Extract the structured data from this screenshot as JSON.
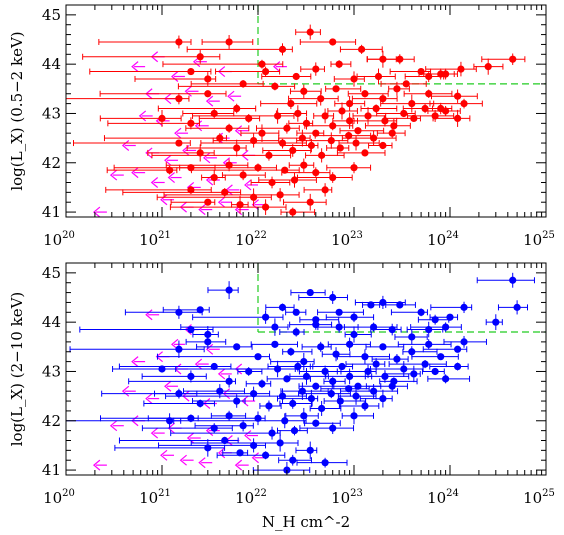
{
  "chart_data": [
    {
      "type": "scatter",
      "ylabel": "log(L_X) (0.5−2 keV)",
      "xlabel": "",
      "xscale": "log",
      "xlim": [
        1e+20,
        1e+25
      ],
      "ylim": [
        40.9,
        45.2
      ],
      "x_tick_labels": [
        {
          "base": "10",
          "exp": "20",
          "value": 1e+20
        },
        {
          "base": "10",
          "exp": "21",
          "value": 1e+21
        },
        {
          "base": "10",
          "exp": "22",
          "value": 1e+22
        },
        {
          "base": "10",
          "exp": "23",
          "value": 1e+23
        },
        {
          "base": "10",
          "exp": "24",
          "value": 1e+24
        },
        {
          "base": "10",
          "exp": "25",
          "value": 1e+25
        }
      ],
      "y_tick_labels": [
        "41",
        "42",
        "43",
        "44",
        "45"
      ],
      "colors": {
        "points": "#ff0000",
        "upper_limits": "#ff00ff",
        "threshold": "#22cc22"
      },
      "thresholds": {
        "nh": 1e+22,
        "lx": 43.6
      },
      "detections": [
        [
          1.5e+21,
          44.45
        ],
        [
          2.5e+21,
          44.15
        ],
        [
          5e+21,
          44.45
        ],
        [
          1.1e+22,
          44.0
        ],
        [
          1.8e+22,
          44.3
        ],
        [
          3.5e+22,
          44.65
        ],
        [
          6e+22,
          44.45
        ],
        [
          1.2e+23,
          44.3
        ],
        [
          2e+23,
          44.1
        ],
        [
          3e+23,
          44.1
        ],
        [
          5e+23,
          43.85
        ],
        [
          8e+23,
          43.8
        ],
        [
          1.3e+24,
          43.9
        ],
        [
          2.5e+24,
          43.95
        ],
        [
          4.5e+24,
          44.1
        ],
        [
          2e+21,
          43.85
        ],
        [
          3e+21,
          43.7
        ],
        [
          7e+21,
          43.6
        ],
        [
          1.2e+22,
          43.85
        ],
        [
          2.5e+22,
          43.75
        ],
        [
          4e+22,
          43.9
        ],
        [
          7e+22,
          44.0
        ],
        [
          1e+23,
          43.7
        ],
        [
          1.8e+23,
          43.75
        ],
        [
          3.5e+23,
          43.6
        ],
        [
          6e+23,
          43.75
        ],
        [
          9e+23,
          43.8
        ],
        [
          1.5e+21,
          43.3
        ],
        [
          3e+21,
          43.4
        ],
        [
          6e+21,
          43.1
        ],
        [
          1.5e+22,
          43.55
        ],
        [
          2.2e+22,
          43.2
        ],
        [
          3e+22,
          43.45
        ],
        [
          4.5e+22,
          43.3
        ],
        [
          6.5e+22,
          43.5
        ],
        [
          9e+22,
          43.2
        ],
        [
          1.3e+23,
          43.4
        ],
        [
          2e+23,
          43.3
        ],
        [
          2.8e+23,
          43.5
        ],
        [
          4e+23,
          43.2
        ],
        [
          6e+23,
          43.4
        ],
        [
          8e+23,
          43.1
        ],
        [
          1.2e+24,
          43.35
        ],
        [
          1e+21,
          42.9
        ],
        [
          2e+21,
          42.8
        ],
        [
          3.5e+21,
          43.0
        ],
        [
          5e+21,
          42.7
        ],
        [
          8e+21,
          42.9
        ],
        [
          1.1e+22,
          42.6
        ],
        [
          1.6e+22,
          42.95
        ],
        [
          2e+22,
          42.7
        ],
        [
          2.6e+22,
          43.0
        ],
        [
          3.2e+22,
          42.8
        ],
        [
          4e+22,
          42.6
        ],
        [
          5e+22,
          42.95
        ],
        [
          6e+22,
          42.75
        ],
        [
          7.5e+22,
          43.05
        ],
        [
          9e+22,
          42.85
        ],
        [
          1.1e+23,
          42.65
        ],
        [
          1.4e+23,
          42.95
        ],
        [
          1.7e+23,
          43.1
        ],
        [
          2.1e+23,
          42.85
        ],
        [
          2.6e+23,
          42.75
        ],
        [
          3.3e+23,
          43.0
        ],
        [
          4.2e+23,
          42.9
        ],
        [
          5.5e+23,
          43.1
        ],
        [
          7e+23,
          42.95
        ],
        [
          9e+23,
          43.05
        ],
        [
          1.2e+24,
          42.9
        ],
        [
          1.4e+24,
          43.2
        ],
        [
          1.5e+21,
          42.4
        ],
        [
          2.5e+21,
          42.2
        ],
        [
          4e+21,
          42.5
        ],
        [
          6e+21,
          42.3
        ],
        [
          9e+21,
          42.45
        ],
        [
          1.3e+22,
          42.15
        ],
        [
          1.8e+22,
          42.4
        ],
        [
          2.3e+22,
          42.25
        ],
        [
          2.9e+22,
          42.5
        ],
        [
          3.6e+22,
          42.35
        ],
        [
          4.6e+22,
          42.15
        ],
        [
          5.8e+22,
          42.45
        ],
        [
          7.2e+22,
          42.3
        ],
        [
          8.8e+22,
          42.55
        ],
        [
          1.05e+23,
          42.4
        ],
        [
          1.3e+23,
          42.2
        ],
        [
          1.6e+23,
          42.5
        ],
        [
          2e+23,
          42.35
        ],
        [
          2.5e+23,
          42.6
        ],
        [
          1.2e+21,
          41.85
        ],
        [
          2e+21,
          41.9
        ],
        [
          3.5e+21,
          41.7
        ],
        [
          5e+21,
          41.95
        ],
        [
          7e+21,
          41.75
        ],
        [
          1e+22,
          41.9
        ],
        [
          1.4e+22,
          41.6
        ],
        [
          1.9e+22,
          41.85
        ],
        [
          2.4e+22,
          41.65
        ],
        [
          3e+22,
          41.95
        ],
        [
          4e+22,
          41.8
        ],
        [
          6e+22,
          41.7
        ],
        [
          1e+23,
          41.9
        ],
        [
          2e+21,
          41.45
        ],
        [
          3e+21,
          41.2
        ],
        [
          4.5e+21,
          41.4
        ],
        [
          6.5e+21,
          41.15
        ],
        [
          9e+21,
          41.3
        ],
        [
          1.2e+22,
          41.1
        ],
        [
          1.7e+22,
          41.35
        ],
        [
          2.3e+22,
          41.0
        ],
        [
          3.5e+22,
          41.2
        ],
        [
          5e+22,
          41.45
        ]
      ],
      "upper_limits": [
        [
          5e+20,
          43.95
        ],
        [
          8e+20,
          44.15
        ],
        [
          1.3e+21,
          43.75
        ],
        [
          2.2e+21,
          44.05
        ],
        [
          4e+21,
          43.85
        ],
        [
          1.5e+22,
          43.95
        ],
        [
          7e+20,
          43.4
        ],
        [
          1.1e+21,
          43.3
        ],
        [
          1.8e+21,
          43.45
        ],
        [
          3e+21,
          43.25
        ],
        [
          5e+21,
          43.35
        ],
        [
          6e+20,
          42.95
        ],
        [
          9e+20,
          42.85
        ],
        [
          1.4e+21,
          42.6
        ],
        [
          2.3e+21,
          42.75
        ],
        [
          3.8e+21,
          42.5
        ],
        [
          6e+21,
          42.65
        ],
        [
          4e+20,
          42.35
        ],
        [
          7e+20,
          42.2
        ],
        [
          1.1e+21,
          42.05
        ],
        [
          1.7e+21,
          42.25
        ],
        [
          2.8e+21,
          42.1
        ],
        [
          4.5e+21,
          42.0
        ],
        [
          7e+21,
          42.15
        ],
        [
          3e+20,
          41.75
        ],
        [
          5e+20,
          41.8
        ],
        [
          8e+20,
          41.6
        ],
        [
          1.2e+21,
          41.7
        ],
        [
          1.9e+21,
          41.5
        ],
        [
          3e+21,
          41.65
        ],
        [
          4.8e+21,
          41.45
        ],
        [
          7.5e+21,
          41.55
        ],
        [
          2e+20,
          41.0
        ],
        [
          1e+21,
          41.25
        ],
        [
          1.6e+21,
          41.1
        ],
        [
          2.5e+21,
          41.05
        ],
        [
          4e+21,
          41.2
        ],
        [
          6e+21,
          41.05
        ],
        [
          9e+21,
          41.15
        ]
      ]
    },
    {
      "type": "scatter",
      "ylabel": "log(L_X) (2−10 keV)",
      "xlabel": "N_H cm^-2",
      "xscale": "log",
      "xlim": [
        1e+20,
        1e+25
      ],
      "ylim": [
        40.9,
        45.2
      ],
      "x_tick_labels": [
        {
          "base": "10",
          "exp": "20",
          "value": 1e+20
        },
        {
          "base": "10",
          "exp": "21",
          "value": 1e+21
        },
        {
          "base": "10",
          "exp": "22",
          "value": 1e+22
        },
        {
          "base": "10",
          "exp": "23",
          "value": 1e+23
        },
        {
          "base": "10",
          "exp": "24",
          "value": 1e+24
        },
        {
          "base": "10",
          "exp": "25",
          "value": 1e+25
        }
      ],
      "y_tick_labels": [
        "41",
        "42",
        "43",
        "44",
        "45"
      ],
      "colors": {
        "points": "#0000ff",
        "upper_limits": "#ff00ff",
        "threshold": "#22cc22"
      },
      "thresholds": {
        "nh": 1e+22,
        "lx": 43.8
      },
      "detections": [
        [
          5e+21,
          44.65
        ],
        [
          3.5e+22,
          44.6
        ],
        [
          6e+22,
          44.5
        ],
        [
          4.5e+24,
          44.85
        ],
        [
          5e+24,
          44.3
        ],
        [
          3e+24,
          44.0
        ],
        [
          1.5e+21,
          44.2
        ],
        [
          2.5e+21,
          44.25
        ],
        [
          1.2e+22,
          44.1
        ],
        [
          1.8e+22,
          44.3
        ],
        [
          2.5e+22,
          44.2
        ],
        [
          4e+22,
          44.05
        ],
        [
          7e+22,
          44.2
        ],
        [
          1e+23,
          44.1
        ],
        [
          1.5e+23,
          44.35
        ],
        [
          2e+23,
          44.4
        ],
        [
          3e+23,
          44.35
        ],
        [
          5e+23,
          44.2
        ],
        [
          7e+23,
          44.05
        ],
        [
          1e+24,
          44.1
        ],
        [
          1.4e+24,
          44.3
        ],
        [
          2e+21,
          43.85
        ],
        [
          3e+21,
          43.75
        ],
        [
          1.5e+22,
          43.9
        ],
        [
          2.5e+22,
          43.8
        ],
        [
          4e+22,
          43.95
        ],
        [
          7e+22,
          43.9
        ],
        [
          1e+23,
          43.75
        ],
        [
          1.6e+23,
          43.9
        ],
        [
          2.5e+23,
          43.85
        ],
        [
          4e+23,
          43.7
        ],
        [
          6e+23,
          43.85
        ],
        [
          9e+23,
          43.9
        ],
        [
          1.4e+24,
          43.6
        ],
        [
          1.5e+21,
          43.45
        ],
        [
          3e+21,
          43.6
        ],
        [
          6e+21,
          43.5
        ],
        [
          1e+22,
          43.3
        ],
        [
          1.5e+22,
          43.55
        ],
        [
          2.2e+22,
          43.4
        ],
        [
          3e+22,
          43.2
        ],
        [
          4.5e+22,
          43.5
        ],
        [
          6.5e+22,
          43.35
        ],
        [
          9e+22,
          43.55
        ],
        [
          1.3e+23,
          43.3
        ],
        [
          2e+23,
          43.5
        ],
        [
          2.8e+23,
          43.25
        ],
        [
          4e+23,
          43.4
        ],
        [
          6e+23,
          43.55
        ],
        [
          8e+23,
          43.3
        ],
        [
          1.2e+24,
          43.45
        ],
        [
          1e+21,
          43.05
        ],
        [
          2e+21,
          42.9
        ],
        [
          3.5e+21,
          43.1
        ],
        [
          5e+21,
          42.8
        ],
        [
          8e+21,
          43.0
        ],
        [
          1.1e+22,
          42.75
        ],
        [
          1.6e+22,
          43.05
        ],
        [
          2e+22,
          42.85
        ],
        [
          2.6e+22,
          43.1
        ],
        [
          3.2e+22,
          42.9
        ],
        [
          4e+22,
          42.7
        ],
        [
          5e+22,
          43.0
        ],
        [
          6e+22,
          42.8
        ],
        [
          7.5e+22,
          43.1
        ],
        [
          9e+22,
          42.9
        ],
        [
          1.1e+23,
          42.7
        ],
        [
          1.4e+23,
          43.0
        ],
        [
          1.7e+23,
          43.15
        ],
        [
          2.1e+23,
          42.9
        ],
        [
          2.6e+23,
          42.8
        ],
        [
          3.3e+23,
          43.05
        ],
        [
          4.2e+23,
          42.95
        ],
        [
          5.5e+23,
          43.15
        ],
        [
          7e+23,
          43.0
        ],
        [
          9e+23,
          42.85
        ],
        [
          1.2e+24,
          43.1
        ],
        [
          1.5e+21,
          42.55
        ],
        [
          2.5e+21,
          42.35
        ],
        [
          4e+21,
          42.6
        ],
        [
          6e+21,
          42.4
        ],
        [
          9e+21,
          42.55
        ],
        [
          1.3e+22,
          42.3
        ],
        [
          1.8e+22,
          42.5
        ],
        [
          2.3e+22,
          42.35
        ],
        [
          2.9e+22,
          42.6
        ],
        [
          3.6e+22,
          42.45
        ],
        [
          4.6e+22,
          42.25
        ],
        [
          5.8e+22,
          42.55
        ],
        [
          7.2e+22,
          42.4
        ],
        [
          8.8e+22,
          42.65
        ],
        [
          1.05e+23,
          42.5
        ],
        [
          1.3e+23,
          42.3
        ],
        [
          1.6e+23,
          42.6
        ],
        [
          2e+23,
          42.45
        ],
        [
          2.5e+23,
          42.7
        ],
        [
          1e+23,
          42.1
        ],
        [
          1.2e+21,
          42.0
        ],
        [
          2e+21,
          42.05
        ],
        [
          3.5e+21,
          41.85
        ],
        [
          5e+21,
          42.1
        ],
        [
          7e+21,
          41.9
        ],
        [
          1e+22,
          42.05
        ],
        [
          1.4e+22,
          41.75
        ],
        [
          1.9e+22,
          42.0
        ],
        [
          2.4e+22,
          41.8
        ],
        [
          3e+22,
          42.1
        ],
        [
          4e+22,
          41.95
        ],
        [
          6e+22,
          41.85
        ],
        [
          3e+21,
          41.45
        ],
        [
          4.5e+21,
          41.6
        ],
        [
          6.5e+21,
          41.35
        ],
        [
          9e+21,
          41.5
        ],
        [
          1.2e+22,
          41.3
        ],
        [
          1.7e+22,
          41.55
        ],
        [
          2.3e+22,
          41.2
        ],
        [
          3.5e+22,
          41.4
        ],
        [
          5e+22,
          41.15
        ],
        [
          2e+22,
          41.0
        ]
      ],
      "upper_limits": [
        [
          7e+20,
          44.15
        ],
        [
          1.3e+21,
          43.55
        ],
        [
          1.8e+21,
          43.85
        ],
        [
          3e+21,
          43.45
        ],
        [
          5e+20,
          43.2
        ],
        [
          9e+20,
          43.3
        ],
        [
          1.4e+21,
          43.05
        ],
        [
          2.3e+21,
          43.15
        ],
        [
          4e+21,
          42.95
        ],
        [
          6e+21,
          43.05
        ],
        [
          4e+20,
          42.6
        ],
        [
          7e+20,
          42.45
        ],
        [
          1.1e+21,
          42.7
        ],
        [
          1.7e+21,
          42.5
        ],
        [
          2.8e+21,
          42.35
        ],
        [
          4.5e+21,
          42.55
        ],
        [
          7e+21,
          42.4
        ],
        [
          3e+20,
          41.9
        ],
        [
          5e+20,
          42.0
        ],
        [
          8e+20,
          41.75
        ],
        [
          1.2e+21,
          41.85
        ],
        [
          1.9e+21,
          41.65
        ],
        [
          3e+21,
          41.8
        ],
        [
          4.8e+21,
          41.6
        ],
        [
          7.5e+21,
          41.7
        ],
        [
          2e+20,
          41.1
        ],
        [
          1e+21,
          41.3
        ],
        [
          1.6e+21,
          41.2
        ],
        [
          2.5e+21,
          41.15
        ],
        [
          4e+21,
          41.35
        ],
        [
          6e+21,
          41.1
        ],
        [
          9e+21,
          41.25
        ]
      ]
    }
  ]
}
